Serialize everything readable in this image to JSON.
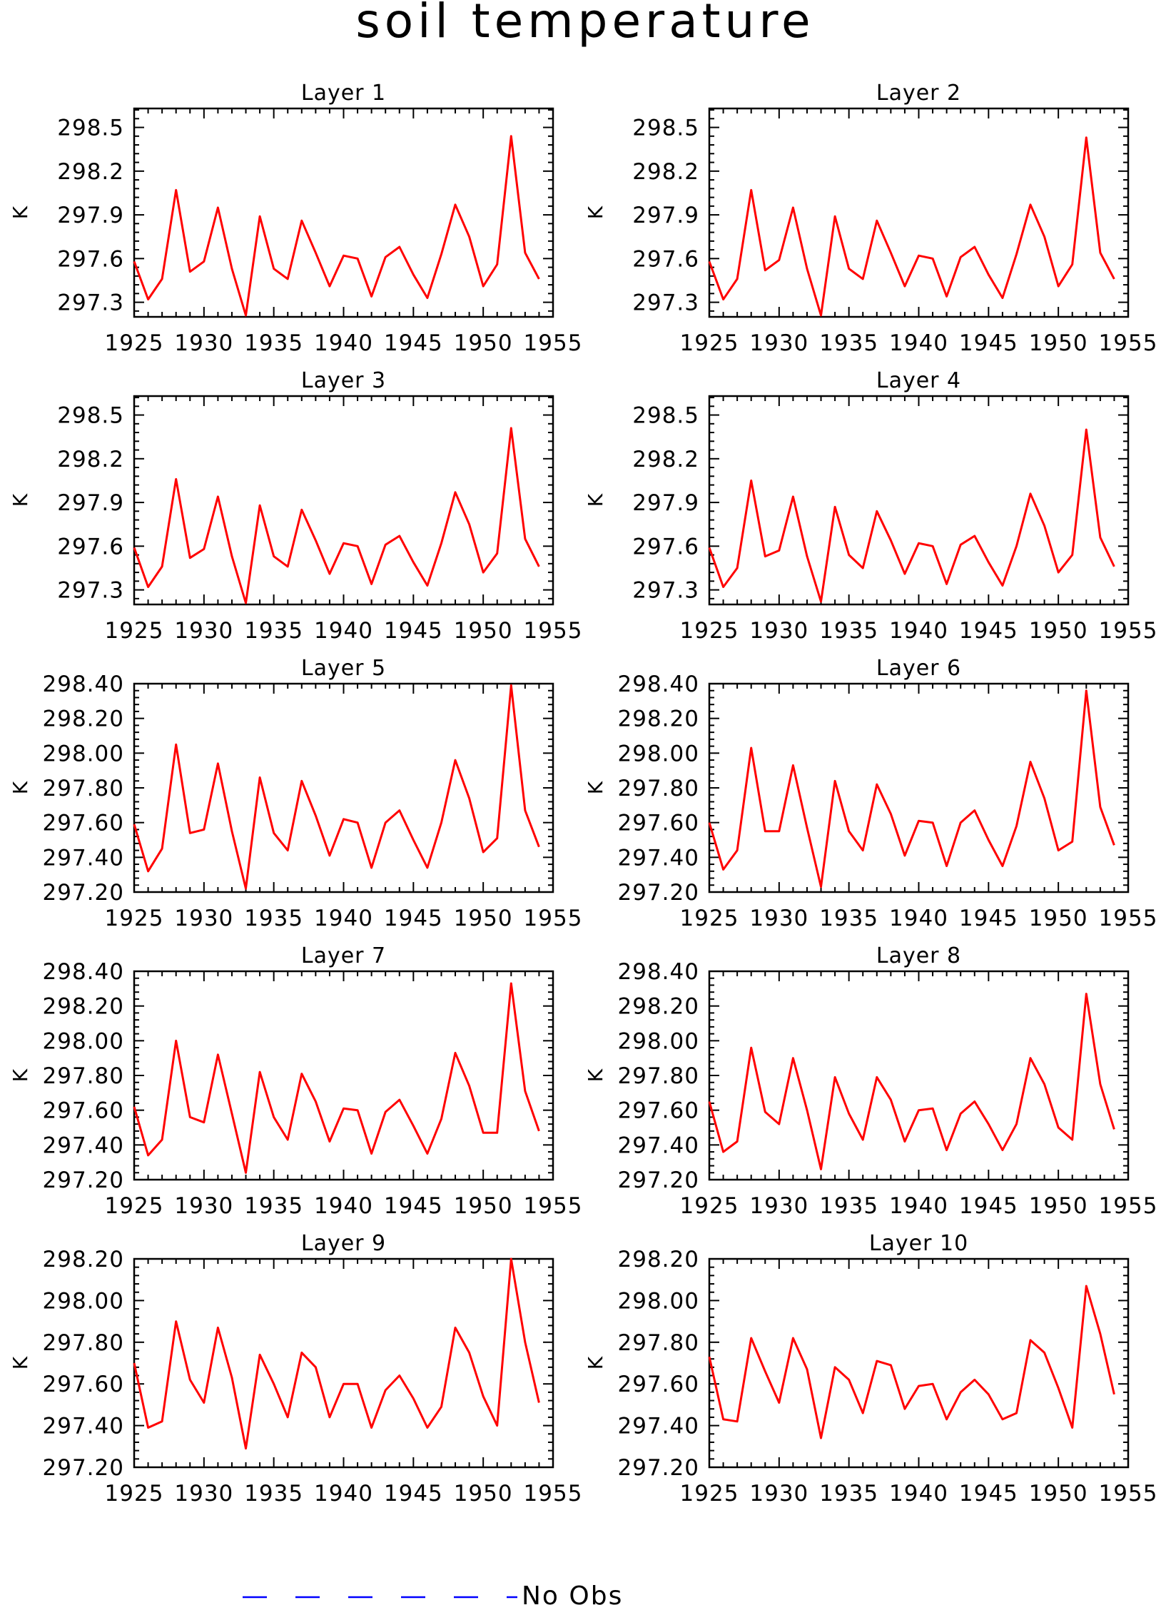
{
  "title": "soil temperature",
  "legend": {
    "label": "No Obs",
    "color": "#0000ff"
  },
  "line_color": "#ff0000",
  "chart_data": [
    {
      "type": "line",
      "title": "Layer 1",
      "ylabel": "K",
      "xlim": [
        1925,
        1955
      ],
      "ylim": [
        297.2,
        298.63
      ],
      "xticks": [
        "1925",
        "1930",
        "1935",
        "1940",
        "1945",
        "1950",
        "1955"
      ],
      "yticks": [
        297.3,
        297.6,
        297.9,
        298.2,
        298.5
      ],
      "ytick_labels": [
        "297.3",
        "297.6",
        "297.9",
        "298.2",
        "298.5"
      ],
      "x": [
        1925,
        1926,
        1927,
        1928,
        1929,
        1930,
        1931,
        1932,
        1933,
        1934,
        1935,
        1936,
        1937,
        1938,
        1939,
        1940,
        1941,
        1942,
        1943,
        1944,
        1945,
        1946,
        1947,
        1948,
        1949,
        1950,
        1951,
        1952,
        1953,
        1954
      ],
      "series": [
        {
          "values": [
            297.58,
            297.32,
            297.46,
            298.07,
            297.51,
            297.58,
            297.95,
            297.53,
            297.21,
            297.89,
            297.53,
            297.46,
            297.86,
            297.64,
            297.41,
            297.62,
            297.6,
            297.34,
            297.61,
            297.68,
            297.49,
            297.33,
            297.63,
            297.97,
            297.75,
            297.41,
            297.56,
            298.44,
            297.64,
            297.46
          ]
        }
      ]
    },
    {
      "type": "line",
      "title": "Layer 2",
      "ylabel": "K",
      "xlim": [
        1925,
        1955
      ],
      "ylim": [
        297.2,
        298.63
      ],
      "xticks": [
        "1925",
        "1930",
        "1935",
        "1940",
        "1945",
        "1950",
        "1955"
      ],
      "yticks": [
        297.3,
        297.6,
        297.9,
        298.2,
        298.5
      ],
      "ytick_labels": [
        "297.3",
        "297.6",
        "297.9",
        "298.2",
        "298.5"
      ],
      "x": [
        1925,
        1926,
        1927,
        1928,
        1929,
        1930,
        1931,
        1932,
        1933,
        1934,
        1935,
        1936,
        1937,
        1938,
        1939,
        1940,
        1941,
        1942,
        1943,
        1944,
        1945,
        1946,
        1947,
        1948,
        1949,
        1950,
        1951,
        1952,
        1953,
        1954
      ],
      "series": [
        {
          "values": [
            297.58,
            297.32,
            297.46,
            298.07,
            297.52,
            297.59,
            297.95,
            297.53,
            297.21,
            297.89,
            297.53,
            297.46,
            297.86,
            297.64,
            297.41,
            297.62,
            297.6,
            297.34,
            297.61,
            297.68,
            297.49,
            297.33,
            297.63,
            297.97,
            297.75,
            297.41,
            297.56,
            298.43,
            297.64,
            297.46
          ]
        }
      ]
    },
    {
      "type": "line",
      "title": "Layer 3",
      "ylabel": "K",
      "xlim": [
        1925,
        1955
      ],
      "ylim": [
        297.2,
        298.63
      ],
      "xticks": [
        "1925",
        "1930",
        "1935",
        "1940",
        "1945",
        "1950",
        "1955"
      ],
      "yticks": [
        297.3,
        297.6,
        297.9,
        298.2,
        298.5
      ],
      "ytick_labels": [
        "297.3",
        "297.6",
        "297.9",
        "298.2",
        "298.5"
      ],
      "x": [
        1925,
        1926,
        1927,
        1928,
        1929,
        1930,
        1931,
        1932,
        1933,
        1934,
        1935,
        1936,
        1937,
        1938,
        1939,
        1940,
        1941,
        1942,
        1943,
        1944,
        1945,
        1946,
        1947,
        1948,
        1949,
        1950,
        1951,
        1952,
        1953,
        1954
      ],
      "series": [
        {
          "values": [
            297.59,
            297.32,
            297.46,
            298.06,
            297.52,
            297.58,
            297.94,
            297.53,
            297.21,
            297.88,
            297.53,
            297.46,
            297.85,
            297.64,
            297.41,
            297.62,
            297.6,
            297.34,
            297.61,
            297.67,
            297.49,
            297.33,
            297.62,
            297.97,
            297.75,
            297.42,
            297.55,
            298.41,
            297.65,
            297.46
          ]
        }
      ]
    },
    {
      "type": "line",
      "title": "Layer 4",
      "ylabel": "K",
      "xlim": [
        1925,
        1955
      ],
      "ylim": [
        297.2,
        298.63
      ],
      "xticks": [
        "1925",
        "1930",
        "1935",
        "1940",
        "1945",
        "1950",
        "1955"
      ],
      "yticks": [
        297.3,
        297.6,
        297.9,
        298.2,
        298.5
      ],
      "ytick_labels": [
        "297.3",
        "297.6",
        "297.9",
        "298.2",
        "298.5"
      ],
      "x": [
        1925,
        1926,
        1927,
        1928,
        1929,
        1930,
        1931,
        1932,
        1933,
        1934,
        1935,
        1936,
        1937,
        1938,
        1939,
        1940,
        1941,
        1942,
        1943,
        1944,
        1945,
        1946,
        1947,
        1948,
        1949,
        1950,
        1951,
        1952,
        1953,
        1954
      ],
      "series": [
        {
          "values": [
            297.59,
            297.32,
            297.45,
            298.05,
            297.53,
            297.57,
            297.94,
            297.53,
            297.22,
            297.87,
            297.54,
            297.45,
            297.84,
            297.64,
            297.41,
            297.62,
            297.6,
            297.34,
            297.61,
            297.67,
            297.49,
            297.33,
            297.6,
            297.96,
            297.74,
            297.42,
            297.54,
            298.4,
            297.66,
            297.46
          ]
        }
      ]
    },
    {
      "type": "line",
      "title": "Layer 5",
      "ylabel": "K",
      "xlim": [
        1925,
        1955
      ],
      "ylim": [
        297.2,
        298.4
      ],
      "xticks": [
        "1925",
        "1930",
        "1935",
        "1940",
        "1945",
        "1950",
        "1955"
      ],
      "yticks": [
        297.2,
        297.4,
        297.6,
        297.8,
        298.0,
        298.2,
        298.4
      ],
      "ytick_labels": [
        "297.20",
        "297.40",
        "297.60",
        "297.80",
        "298.00",
        "298.20",
        "298.40"
      ],
      "x": [
        1925,
        1926,
        1927,
        1928,
        1929,
        1930,
        1931,
        1932,
        1933,
        1934,
        1935,
        1936,
        1937,
        1938,
        1939,
        1940,
        1941,
        1942,
        1943,
        1944,
        1945,
        1946,
        1947,
        1948,
        1949,
        1950,
        1951,
        1952,
        1953,
        1954
      ],
      "series": [
        {
          "values": [
            297.59,
            297.32,
            297.45,
            298.05,
            297.54,
            297.56,
            297.94,
            297.55,
            297.22,
            297.86,
            297.54,
            297.44,
            297.84,
            297.64,
            297.41,
            297.62,
            297.6,
            297.34,
            297.6,
            297.67,
            297.5,
            297.34,
            297.6,
            297.96,
            297.74,
            297.43,
            297.51,
            298.39,
            297.67,
            297.46
          ]
        }
      ]
    },
    {
      "type": "line",
      "title": "Layer 6",
      "ylabel": "K",
      "xlim": [
        1925,
        1955
      ],
      "ylim": [
        297.2,
        298.4
      ],
      "xticks": [
        "1925",
        "1930",
        "1935",
        "1940",
        "1945",
        "1950",
        "1955"
      ],
      "yticks": [
        297.2,
        297.4,
        297.6,
        297.8,
        298.0,
        298.2,
        298.4
      ],
      "ytick_labels": [
        "297.20",
        "297.40",
        "297.60",
        "297.80",
        "298.00",
        "298.20",
        "298.40"
      ],
      "x": [
        1925,
        1926,
        1927,
        1928,
        1929,
        1930,
        1931,
        1932,
        1933,
        1934,
        1935,
        1936,
        1937,
        1938,
        1939,
        1940,
        1941,
        1942,
        1943,
        1944,
        1945,
        1946,
        1947,
        1948,
        1949,
        1950,
        1951,
        1952,
        1953,
        1954
      ],
      "series": [
        {
          "values": [
            297.6,
            297.33,
            297.44,
            298.03,
            297.55,
            297.55,
            297.93,
            297.57,
            297.23,
            297.84,
            297.55,
            297.44,
            297.82,
            297.65,
            297.41,
            297.61,
            297.6,
            297.35,
            297.6,
            297.67,
            297.5,
            297.35,
            297.58,
            297.95,
            297.74,
            297.44,
            297.49,
            298.36,
            297.69,
            297.47
          ]
        }
      ]
    },
    {
      "type": "line",
      "title": "Layer 7",
      "ylabel": "K",
      "xlim": [
        1925,
        1955
      ],
      "ylim": [
        297.2,
        298.4
      ],
      "xticks": [
        "1925",
        "1930",
        "1935",
        "1940",
        "1945",
        "1950",
        "1955"
      ],
      "yticks": [
        297.2,
        297.4,
        297.6,
        297.8,
        298.0,
        298.2,
        298.4
      ],
      "ytick_labels": [
        "297.20",
        "297.40",
        "297.60",
        "297.80",
        "298.00",
        "298.20",
        "298.40"
      ],
      "x": [
        1925,
        1926,
        1927,
        1928,
        1929,
        1930,
        1931,
        1932,
        1933,
        1934,
        1935,
        1936,
        1937,
        1938,
        1939,
        1940,
        1941,
        1942,
        1943,
        1944,
        1945,
        1946,
        1947,
        1948,
        1949,
        1950,
        1951,
        1952,
        1953,
        1954
      ],
      "series": [
        {
          "values": [
            297.62,
            297.34,
            297.43,
            298.0,
            297.56,
            297.53,
            297.92,
            297.58,
            297.24,
            297.82,
            297.56,
            297.43,
            297.81,
            297.65,
            297.42,
            297.61,
            297.6,
            297.35,
            297.59,
            297.66,
            297.51,
            297.35,
            297.55,
            297.93,
            297.74,
            297.47,
            297.47,
            298.33,
            297.71,
            297.48
          ]
        }
      ]
    },
    {
      "type": "line",
      "title": "Layer 8",
      "ylabel": "K",
      "xlim": [
        1925,
        1955
      ],
      "ylim": [
        297.2,
        298.4
      ],
      "xticks": [
        "1925",
        "1930",
        "1935",
        "1940",
        "1945",
        "1950",
        "1955"
      ],
      "yticks": [
        297.2,
        297.4,
        297.6,
        297.8,
        298.0,
        298.2,
        298.4
      ],
      "ytick_labels": [
        "297.20",
        "297.40",
        "297.60",
        "297.80",
        "298.00",
        "298.20",
        "298.40"
      ],
      "x": [
        1925,
        1926,
        1927,
        1928,
        1929,
        1930,
        1931,
        1932,
        1933,
        1934,
        1935,
        1936,
        1937,
        1938,
        1939,
        1940,
        1941,
        1942,
        1943,
        1944,
        1945,
        1946,
        1947,
        1948,
        1949,
        1950,
        1951,
        1952,
        1953,
        1954
      ],
      "series": [
        {
          "values": [
            297.65,
            297.36,
            297.42,
            297.96,
            297.59,
            297.52,
            297.9,
            297.6,
            297.26,
            297.79,
            297.58,
            297.43,
            297.79,
            297.66,
            297.42,
            297.6,
            297.61,
            297.37,
            297.58,
            297.65,
            297.52,
            297.37,
            297.52,
            297.9,
            297.75,
            297.5,
            297.43,
            298.27,
            297.75,
            297.49
          ]
        }
      ]
    },
    {
      "type": "line",
      "title": "Layer 9",
      "ylabel": "K",
      "xlim": [
        1925,
        1955
      ],
      "ylim": [
        297.2,
        298.2
      ],
      "xticks": [
        "1925",
        "1930",
        "1935",
        "1940",
        "1945",
        "1950",
        "1955"
      ],
      "yticks": [
        297.2,
        297.4,
        297.6,
        297.8,
        298.0,
        298.2
      ],
      "ytick_labels": [
        "297.20",
        "297.40",
        "297.60",
        "297.80",
        "298.00",
        "298.20"
      ],
      "x": [
        1925,
        1926,
        1927,
        1928,
        1929,
        1930,
        1931,
        1932,
        1933,
        1934,
        1935,
        1936,
        1937,
        1938,
        1939,
        1940,
        1941,
        1942,
        1943,
        1944,
        1945,
        1946,
        1947,
        1948,
        1949,
        1950,
        1951,
        1952,
        1953,
        1954
      ],
      "series": [
        {
          "values": [
            297.7,
            297.39,
            297.42,
            297.9,
            297.62,
            297.51,
            297.87,
            297.63,
            297.29,
            297.74,
            297.6,
            297.44,
            297.75,
            297.68,
            297.44,
            297.6,
            297.6,
            297.39,
            297.57,
            297.64,
            297.53,
            297.39,
            297.49,
            297.87,
            297.75,
            297.54,
            297.4,
            298.2,
            297.8,
            297.51
          ]
        }
      ]
    },
    {
      "type": "line",
      "title": "Layer 10",
      "ylabel": "K",
      "xlim": [
        1925,
        1955
      ],
      "ylim": [
        297.2,
        298.2
      ],
      "xticks": [
        "1925",
        "1930",
        "1935",
        "1940",
        "1945",
        "1950",
        "1955"
      ],
      "yticks": [
        297.2,
        297.4,
        297.6,
        297.8,
        298.0,
        298.2
      ],
      "ytick_labels": [
        "297.20",
        "297.40",
        "297.60",
        "297.80",
        "298.00",
        "298.20"
      ],
      "x": [
        1925,
        1926,
        1927,
        1928,
        1929,
        1930,
        1931,
        1932,
        1933,
        1934,
        1935,
        1936,
        1937,
        1938,
        1939,
        1940,
        1941,
        1942,
        1943,
        1944,
        1945,
        1946,
        1947,
        1948,
        1949,
        1950,
        1951,
        1952,
        1953,
        1954
      ],
      "series": [
        {
          "values": [
            297.73,
            297.43,
            297.42,
            297.82,
            297.66,
            297.51,
            297.82,
            297.67,
            297.34,
            297.68,
            297.62,
            297.46,
            297.71,
            297.69,
            297.48,
            297.59,
            297.6,
            297.43,
            297.56,
            297.62,
            297.55,
            297.43,
            297.46,
            297.81,
            297.75,
            297.58,
            297.39,
            298.07,
            297.84,
            297.55
          ]
        }
      ]
    }
  ]
}
